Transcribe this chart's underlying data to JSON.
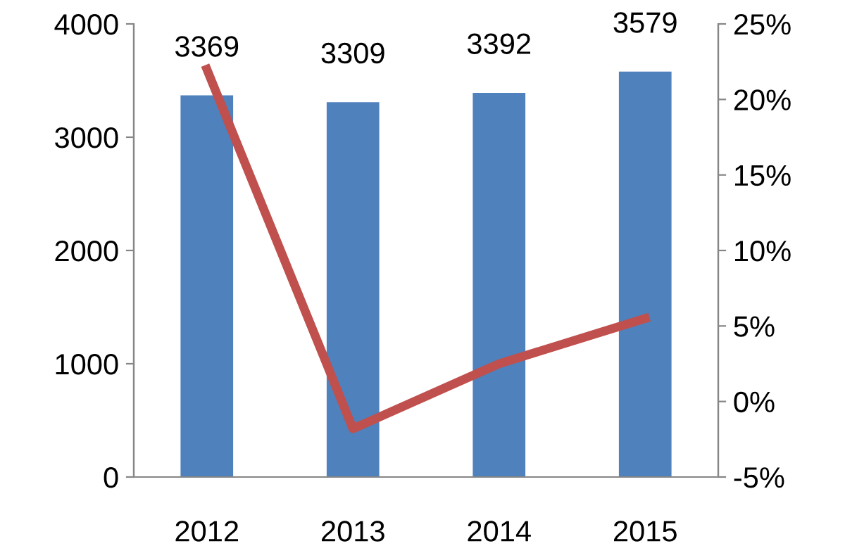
{
  "chart_data": {
    "type": "bar",
    "categories": [
      "2012",
      "2013",
      "2014",
      "2015"
    ],
    "series": [
      {
        "color": "#4f81bd",
        "values": [
          3369,
          3309,
          3392,
          3579
        ],
        "value_labels": [
          "3369",
          "3309",
          "3392",
          "3579"
        ]
      },
      {
        "type": "line",
        "axis": "y2",
        "color": "#c0504d",
        "values": [
          22,
          -1.8,
          2.5,
          5.5
        ]
      }
    ],
    "ylim": [
      0,
      4000
    ],
    "yticks": [
      0,
      1000,
      2000,
      3000,
      4000
    ],
    "y2lim": [
      -5,
      25
    ],
    "y2ticks": [
      {
        "value": -5,
        "label": "-5%"
      },
      {
        "value": 0,
        "label": "0%"
      },
      {
        "value": 5,
        "label": "5%"
      },
      {
        "value": 10,
        "label": "10%"
      },
      {
        "value": 15,
        "label": "15%"
      },
      {
        "value": 20,
        "label": "20%"
      },
      {
        "value": 25,
        "label": "25%"
      }
    ],
    "grid": false,
    "legend": false,
    "marker": "none",
    "line_style": "solid"
  }
}
